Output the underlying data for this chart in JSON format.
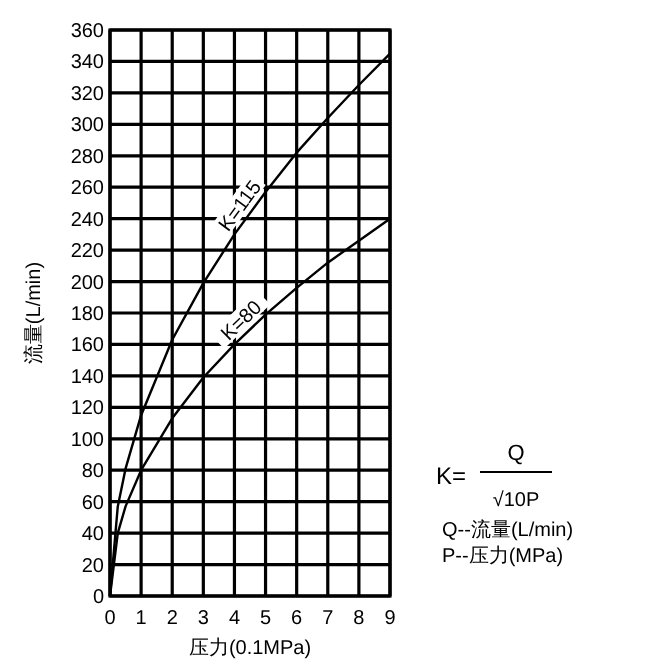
{
  "chart_data": {
    "type": "line",
    "xlabel": "压力(0.1MPa)",
    "ylabel": "流量(L/min)",
    "x": [
      0,
      0.25,
      0.5,
      1,
      2,
      3,
      4,
      5,
      6,
      7,
      8,
      9
    ],
    "series": [
      {
        "name": "K=115",
        "color": "#000000",
        "values": [
          0,
          57,
          81,
          115,
          163,
          199,
          230,
          257,
          282,
          304,
          325,
          345
        ]
      },
      {
        "name": "K=80",
        "color": "#000000",
        "values": [
          0,
          40,
          57,
          80,
          113,
          139,
          160,
          179,
          196,
          212,
          226,
          240
        ]
      }
    ],
    "xlim": [
      0,
      9
    ],
    "xticks": [
      0,
      1,
      2,
      3,
      4,
      5,
      6,
      7,
      8,
      9
    ],
    "ylim": [
      0,
      360
    ],
    "yticks": [
      0,
      20,
      40,
      60,
      80,
      100,
      120,
      140,
      160,
      180,
      200,
      220,
      240,
      260,
      280,
      300,
      320,
      340,
      360
    ],
    "grid": true,
    "marker": "none",
    "line_style": "solid",
    "annotations": [
      "K=",
      "Q",
      "√10P",
      "Q--流量(L/min)",
      "P--压力(MPa)"
    ]
  }
}
